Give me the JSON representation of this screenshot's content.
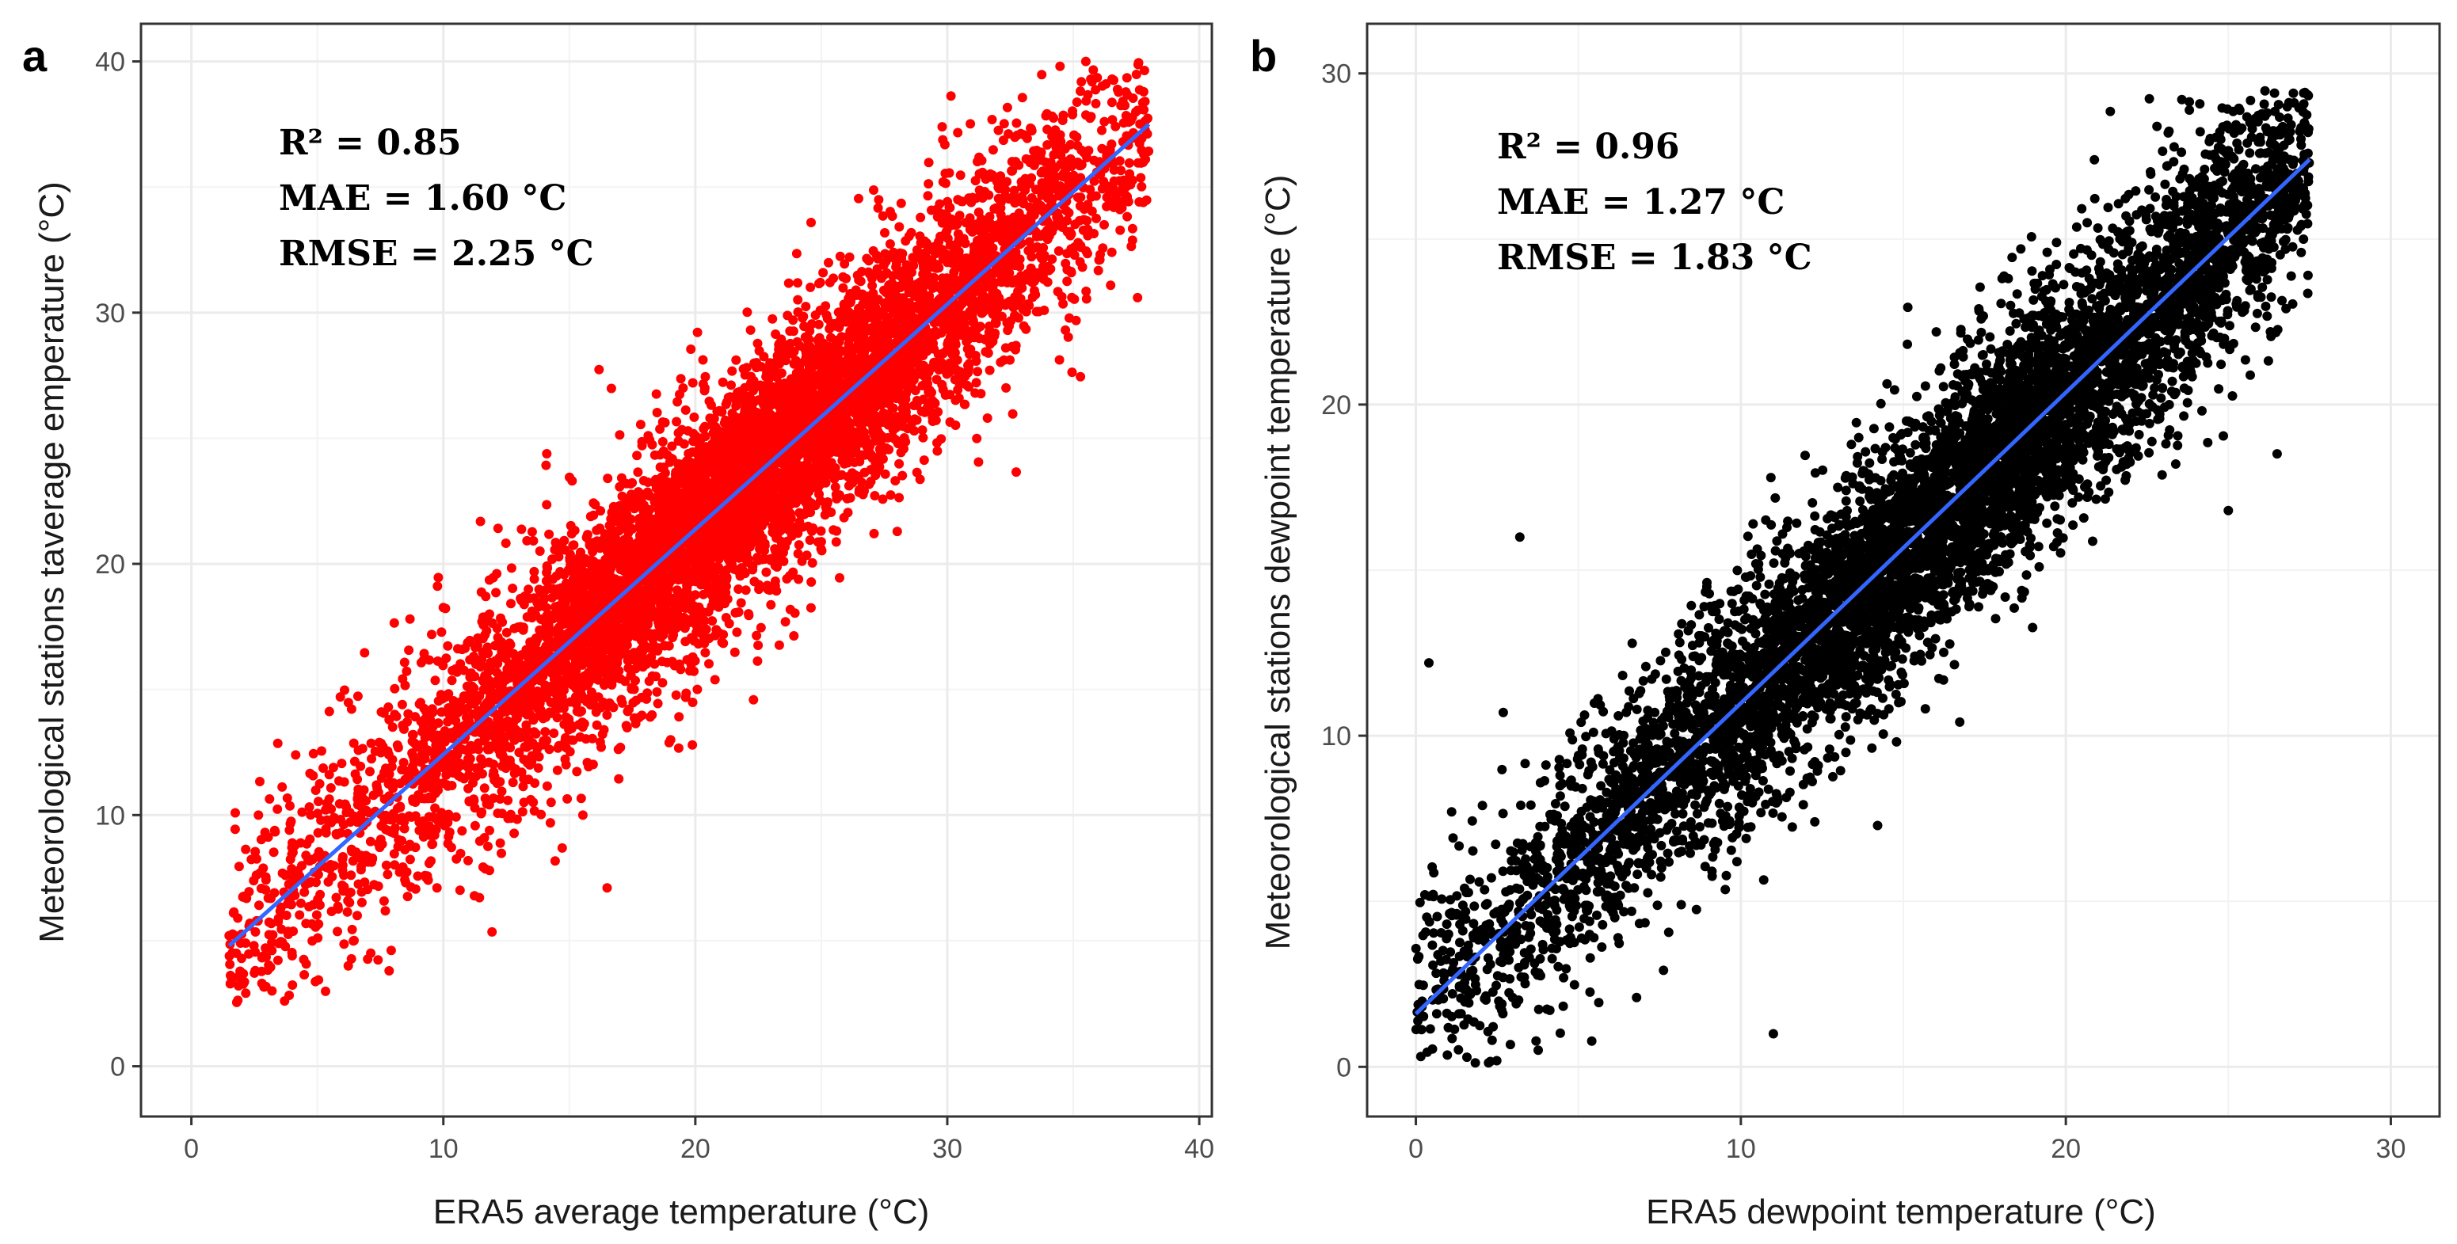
{
  "chart_data": [
    {
      "panel": "a",
      "type": "scatter",
      "title": "",
      "xlabel": "ERA5 average temperature (°C)",
      "ylabel": "Meteorological stations taverage emperature (°C)",
      "xlim": [
        -2,
        40.5
      ],
      "ylim": [
        -2,
        41.5
      ],
      "xticks": [
        0,
        10,
        20,
        30,
        40
      ],
      "yticks": [
        0,
        10,
        20,
        30,
        40
      ],
      "grid": true,
      "point_color": "#ff0000",
      "stats": [
        "R² = 0.85",
        "MAE = 1.60 °C",
        "RMSE = 2.25 °C"
      ],
      "fit_line": {
        "color": "#3366ff",
        "x": [
          1.5,
          38
        ],
        "y": [
          4.8,
          37.5
        ]
      },
      "points": {
        "n": 7000,
        "x_range": [
          1.5,
          38
        ],
        "center_x": 22,
        "spread_x": 6.5,
        "residual_sd": 2.25,
        "y_clip": [
          2.5,
          40
        ],
        "notable": [
          [
            1.5,
            5.2
          ],
          [
            2.8,
            3.3
          ],
          [
            3.2,
            3.0
          ],
          [
            3.7,
            2.6
          ],
          [
            4.0,
            4.4
          ],
          [
            16.5,
            7.1
          ],
          [
            35.5,
            40.0
          ],
          [
            37.5,
            37.0
          ]
        ]
      }
    },
    {
      "panel": "b",
      "type": "scatter",
      "title": "",
      "xlabel": "ERA5 dewpoint temperature (°C)",
      "ylabel": "Meteorological stations dewpoint temperature (°C)",
      "xlim": [
        -1.5,
        31.5
      ],
      "ylim": [
        -1.5,
        31.5
      ],
      "xticks": [
        0,
        10,
        20,
        30
      ],
      "yticks": [
        0,
        10,
        20,
        30
      ],
      "grid": true,
      "point_color": "#000000",
      "stats": [
        "R² = 0.96",
        "MAE = 1.27 °C",
        "RMSE = 1.83 °C"
      ],
      "fit_line": {
        "color": "#3366ff",
        "x": [
          0,
          27.5
        ],
        "y": [
          1.6,
          27.4
        ]
      },
      "points": {
        "n": 7000,
        "x_range": [
          0,
          27.5
        ],
        "center_x": 17,
        "spread_x": 6.5,
        "residual_sd": 1.83,
        "y_clip": [
          0,
          29.5
        ],
        "notable": [
          [
            0.4,
            12.2
          ],
          [
            3.2,
            16.0
          ],
          [
            11.0,
            1.0
          ],
          [
            25.0,
            16.8
          ],
          [
            27.0,
            29.4
          ]
        ]
      }
    }
  ]
}
